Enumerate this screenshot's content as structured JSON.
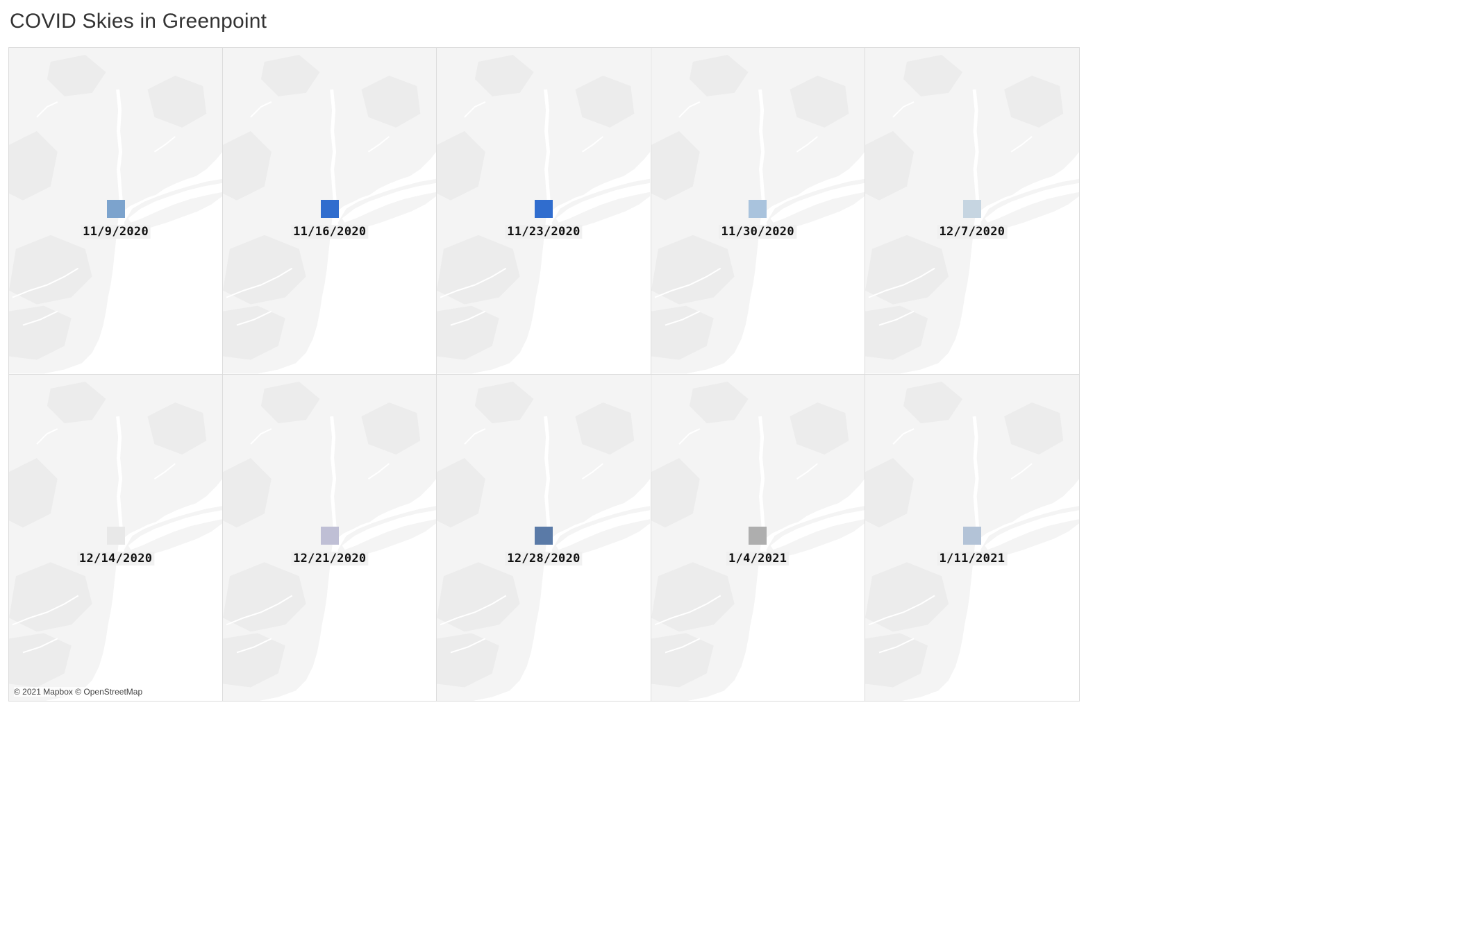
{
  "title": "COVID Skies in Greenpoint",
  "attribution": "© 2021 Mapbox © OpenStreetMap",
  "basemap": {
    "land_color": "#f4f4f4",
    "water_color": "#ffffff",
    "detail_color": "#ececec"
  },
  "panels": [
    {
      "date": "11/9/2020",
      "sky_color": "#7ca3cd"
    },
    {
      "date": "11/16/2020",
      "sky_color": "#306dce"
    },
    {
      "date": "11/23/2020",
      "sky_color": "#306dce"
    },
    {
      "date": "11/30/2020",
      "sky_color": "#a9c3dd"
    },
    {
      "date": "12/7/2020",
      "sky_color": "#c6d5e1"
    },
    {
      "date": "12/14/2020",
      "sky_color": "#e8e8e8"
    },
    {
      "date": "12/21/2020",
      "sky_color": "#bfbfd5"
    },
    {
      "date": "12/28/2020",
      "sky_color": "#5a7aa7"
    },
    {
      "date": "1/4/2021",
      "sky_color": "#aeaeae"
    },
    {
      "date": "1/11/2021",
      "sky_color": "#b3c3d7"
    }
  ]
}
